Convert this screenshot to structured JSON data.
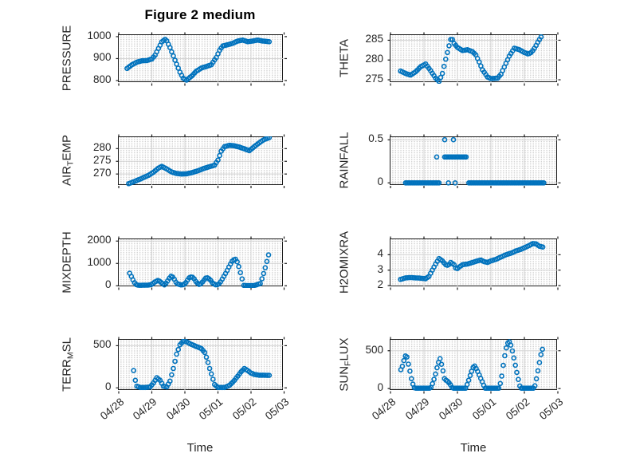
{
  "figure": {
    "title": "Figure 2 medium",
    "xlabel": "Time",
    "marker_color": "#0072BD",
    "axis_color": "#1c1c1c",
    "grid_color": "#d4d4d4",
    "text_color": "#262626",
    "x_axis": {
      "tick_labels": [
        "04/28",
        "04/29",
        "04/30",
        "05/01",
        "05/02",
        "05/03"
      ],
      "range_days": [
        0,
        5
      ],
      "x_encoding": "days since 04/28 00:00"
    }
  },
  "chart_data": [
    {
      "type": "scatter",
      "ylabel": "PRESSURE",
      "ylabel_parts": [
        {
          "t": "PRESSURE",
          "sub": false
        }
      ],
      "ytick_values": [
        800,
        900,
        1000
      ],
      "ytick_labels": [
        "800",
        "900",
        "1000"
      ],
      "ylim": [
        789,
        1007
      ],
      "runs": [
        {
          "step": 0.05,
          "x": [
            0.25,
            0.4,
            0.55,
            0.7,
            0.85,
            1.0,
            1.1,
            1.2,
            1.3,
            1.42,
            1.55,
            1.7,
            1.85,
            1.95,
            2.05,
            2.2,
            2.35,
            2.5,
            2.65,
            2.8,
            2.95,
            3.05,
            3.15,
            3.3,
            3.45,
            3.6,
            3.75,
            3.9,
            4.05,
            4.2,
            4.35,
            4.55
          ],
          "y": [
            855,
            872,
            884,
            890,
            891,
            898,
            916,
            946,
            976,
            990,
            950,
            893,
            838,
            810,
            802,
            820,
            843,
            857,
            864,
            872,
            905,
            938,
            958,
            963,
            970,
            980,
            984,
            977,
            980,
            984,
            980,
            977
          ]
        }
      ]
    },
    {
      "type": "scatter",
      "ylabel": "THETA",
      "ylabel_parts": [
        {
          "t": "THETA",
          "sub": false
        }
      ],
      "ytick_values": [
        275,
        280,
        285
      ],
      "ytick_labels": [
        "275",
        "280",
        "285"
      ],
      "ylim": [
        274.2,
        286.3
      ],
      "runs": [
        {
          "step": 0.05,
          "x": [
            0.3,
            0.45,
            0.6,
            0.75,
            0.9,
            1.05,
            1.2,
            1.35,
            1.45,
            1.55,
            1.65,
            1.75,
            1.82,
            1.9,
            2.0,
            2.15,
            2.3,
            2.45,
            2.55,
            2.65,
            2.75,
            2.9,
            3.0,
            3.2,
            3.3,
            3.42,
            3.55,
            3.7,
            3.85,
            4.0,
            4.12,
            4.22,
            4.32,
            4.42,
            4.52
          ],
          "y": [
            277.2,
            276.6,
            276.2,
            277.0,
            278.3,
            279.0,
            277.3,
            275.4,
            274.6,
            276.6,
            280.2,
            283.6,
            285.8,
            284.2,
            283.2,
            282.4,
            282.6,
            282.1,
            281.3,
            279.5,
            277.5,
            275.7,
            275.3,
            275.4,
            276.4,
            278.6,
            281.0,
            283.0,
            282.6,
            281.9,
            281.5,
            282.0,
            283.2,
            284.8,
            286.1
          ]
        }
      ]
    },
    {
      "type": "scatter",
      "ylabel": "AIR_TEMP",
      "ylabel_parts": [
        {
          "t": "AIR",
          "sub": false
        },
        {
          "t": "T",
          "sub": true
        },
        {
          "t": "EMP",
          "sub": false
        }
      ],
      "ytick_values": [
        270,
        275,
        280
      ],
      "ytick_labels": [
        "270",
        "275",
        "280"
      ],
      "ylim": [
        265.5,
        284.5
      ],
      "runs": [
        {
          "step": 0.05,
          "x": [
            0.3,
            0.5,
            0.7,
            0.9,
            1.05,
            1.2,
            1.3,
            1.45,
            1.6,
            1.75,
            1.9,
            2.05,
            2.2,
            2.4,
            2.6,
            2.8,
            2.9,
            3.0,
            3.1,
            3.2,
            3.35,
            3.5,
            3.65,
            3.8,
            3.95,
            4.1,
            4.25,
            4.4,
            4.55
          ],
          "y": [
            266.2,
            267.2,
            268.3,
            269.5,
            270.7,
            272.3,
            273.0,
            272.0,
            270.8,
            270.2,
            270.0,
            270.1,
            270.5,
            271.3,
            272.3,
            273.1,
            273.5,
            275.5,
            279.0,
            280.8,
            281.3,
            281.1,
            280.6,
            279.9,
            279.2,
            280.8,
            282.3,
            283.6,
            284.3
          ]
        }
      ]
    },
    {
      "type": "scatter",
      "ylabel": "RAINFALL",
      "ylabel_parts": [
        {
          "t": "RAINFALL",
          "sub": false
        }
      ],
      "ytick_values": [
        0,
        0.5
      ],
      "ytick_labels": [
        "0",
        "0.5"
      ],
      "ylim": [
        -0.03,
        0.53
      ],
      "runs": [
        {
          "step": 0.04,
          "x": [
            0.45,
            1.45
          ],
          "y": [
            0,
            0
          ]
        },
        {
          "x": [
            1.73,
            1.93
          ],
          "y": [
            0,
            0
          ]
        },
        {
          "x": [
            1.38
          ],
          "y": [
            0.3
          ]
        },
        {
          "step": 0.04,
          "x": [
            1.62,
            2.28
          ],
          "y": [
            0.3,
            0.3
          ]
        },
        {
          "x": [
            1.62,
            1.88
          ],
          "y": [
            0.5,
            0.5
          ]
        },
        {
          "step": 0.04,
          "x": [
            2.34,
            4.6
          ],
          "y": [
            0,
            0
          ]
        }
      ]
    },
    {
      "type": "scatter",
      "ylabel": "MIXDEPTH",
      "ylabel_parts": [
        {
          "t": "MIXDEPTH",
          "sub": false
        }
      ],
      "ytick_values": [
        0,
        1000,
        2000
      ],
      "ytick_labels": [
        "0",
        "1000",
        "2000"
      ],
      "ylim": [
        -60,
        2080
      ],
      "runs": [
        {
          "step": 0.05,
          "x": [
            0.33,
            0.38,
            0.45,
            0.52,
            0.6,
            0.75,
            0.9,
            1.0,
            1.1,
            1.2,
            1.28,
            1.38,
            1.45,
            1.52,
            1.58,
            1.65,
            1.75,
            1.9,
            2.0,
            2.08,
            2.15,
            2.25,
            2.35,
            2.45,
            2.55,
            2.65,
            2.75,
            2.85,
            2.95,
            3.05,
            3.15,
            3.25,
            3.35,
            3.45,
            3.55,
            3.63,
            3.7,
            3.78,
            3.9,
            4.1,
            4.28,
            4.35,
            4.42,
            4.5,
            4.57
          ],
          "y": [
            560,
            420,
            200,
            60,
            20,
            25,
            30,
            60,
            180,
            250,
            150,
            40,
            150,
            320,
            430,
            380,
            100,
            30,
            80,
            250,
            400,
            380,
            150,
            40,
            200,
            380,
            300,
            100,
            30,
            100,
            350,
            600,
            900,
            1150,
            1200,
            860,
            480,
            20,
            10,
            10,
            100,
            400,
            750,
            1200,
            1620
          ]
        }
      ]
    },
    {
      "type": "scatter",
      "ylabel": "H2OMIXRA",
      "ylabel_parts": [
        {
          "t": "H2OMIXRA",
          "sub": false
        }
      ],
      "ytick_values": [
        2,
        3,
        4
      ],
      "ytick_labels": [
        "2",
        "3",
        "4"
      ],
      "ylim": [
        1.9,
        5.0
      ],
      "runs": [
        {
          "step": 0.05,
          "x": [
            0.3,
            0.45,
            0.6,
            0.75,
            0.9,
            1.05,
            1.15,
            1.25,
            1.35,
            1.45,
            1.55,
            1.65,
            1.72,
            1.8,
            1.9,
            1.97,
            2.05,
            2.15,
            2.3,
            2.45,
            2.6,
            2.7,
            2.8,
            2.9,
            3.0,
            3.15,
            3.3,
            3.45,
            3.6,
            3.75,
            3.9,
            4.05,
            4.15,
            4.25,
            4.35,
            4.45,
            4.55
          ],
          "y": [
            2.4,
            2.5,
            2.52,
            2.5,
            2.48,
            2.45,
            2.6,
            3.0,
            3.4,
            3.75,
            3.6,
            3.35,
            3.3,
            3.5,
            3.35,
            3.05,
            3.2,
            3.35,
            3.4,
            3.5,
            3.6,
            3.65,
            3.55,
            3.5,
            3.6,
            3.7,
            3.85,
            4.0,
            4.1,
            4.25,
            4.35,
            4.5,
            4.6,
            4.72,
            4.7,
            4.55,
            4.5
          ]
        }
      ]
    },
    {
      "type": "scatter",
      "ylabel": "TERR_MSL",
      "ylabel_parts": [
        {
          "t": "TERR",
          "sub": false
        },
        {
          "t": "M",
          "sub": true
        },
        {
          "t": "SL",
          "sub": false
        }
      ],
      "ytick_values": [
        0,
        500
      ],
      "ytick_labels": [
        "0",
        "500"
      ],
      "ylim": [
        -35,
        570
      ],
      "runs": [
        {
          "step": 0.05,
          "x": [
            0.45,
            0.5,
            0.55,
            0.65,
            0.8,
            0.95,
            1.05,
            1.15,
            1.25,
            1.35,
            1.45,
            1.55,
            1.65,
            1.75,
            1.85,
            1.95,
            2.05,
            2.2,
            2.35,
            2.5,
            2.6,
            2.68,
            2.75,
            2.82,
            2.9,
            3.0,
            3.2,
            3.35,
            3.5,
            3.6,
            3.7,
            3.8,
            3.9,
            4.0,
            4.1,
            4.25,
            4.4,
            4.55
          ],
          "y": [
            205,
            90,
            20,
            5,
            5,
            10,
            60,
            120,
            90,
            20,
            10,
            80,
            230,
            400,
            510,
            555,
            545,
            515,
            490,
            465,
            420,
            330,
            230,
            140,
            40,
            5,
            5,
            30,
            90,
            140,
            190,
            230,
            205,
            175,
            160,
            150,
            150,
            148
          ]
        }
      ]
    },
    {
      "type": "scatter",
      "ylabel": "SUN_FLUX",
      "ylabel_parts": [
        {
          "t": "SUN",
          "sub": false
        },
        {
          "t": "F",
          "sub": true
        },
        {
          "t": "LUX",
          "sub": false
        }
      ],
      "ytick_values": [
        0,
        500
      ],
      "ytick_labels": [
        "0",
        "500"
      ],
      "ylim": [
        -30,
        645
      ],
      "runs": [
        {
          "step": 0.045,
          "x": [
            0.31,
            0.36,
            0.4,
            0.44,
            0.48,
            0.52,
            0.56,
            0.6,
            0.65,
            0.72,
            1.2,
            1.28,
            1.35,
            1.42,
            1.48,
            1.55,
            1.62,
            1.7,
            1.78,
            1.85,
            2.25,
            2.32,
            2.4,
            2.47,
            2.52,
            2.6,
            2.68,
            2.75,
            2.82,
            3.25,
            3.32,
            3.4,
            3.47,
            3.53,
            3.58,
            3.65,
            3.72,
            3.8,
            3.88,
            4.3,
            4.37,
            4.44,
            4.5,
            4.56
          ],
          "y": [
            250,
            300,
            370,
            430,
            440,
            350,
            280,
            180,
            80,
            5,
            5,
            90,
            200,
            330,
            395,
            280,
            120,
            100,
            60,
            5,
            5,
            90,
            200,
            280,
            300,
            230,
            150,
            80,
            5,
            5,
            150,
            400,
            560,
            630,
            600,
            480,
            330,
            160,
            5,
            5,
            150,
            320,
            460,
            550
          ]
        }
      ]
    }
  ]
}
